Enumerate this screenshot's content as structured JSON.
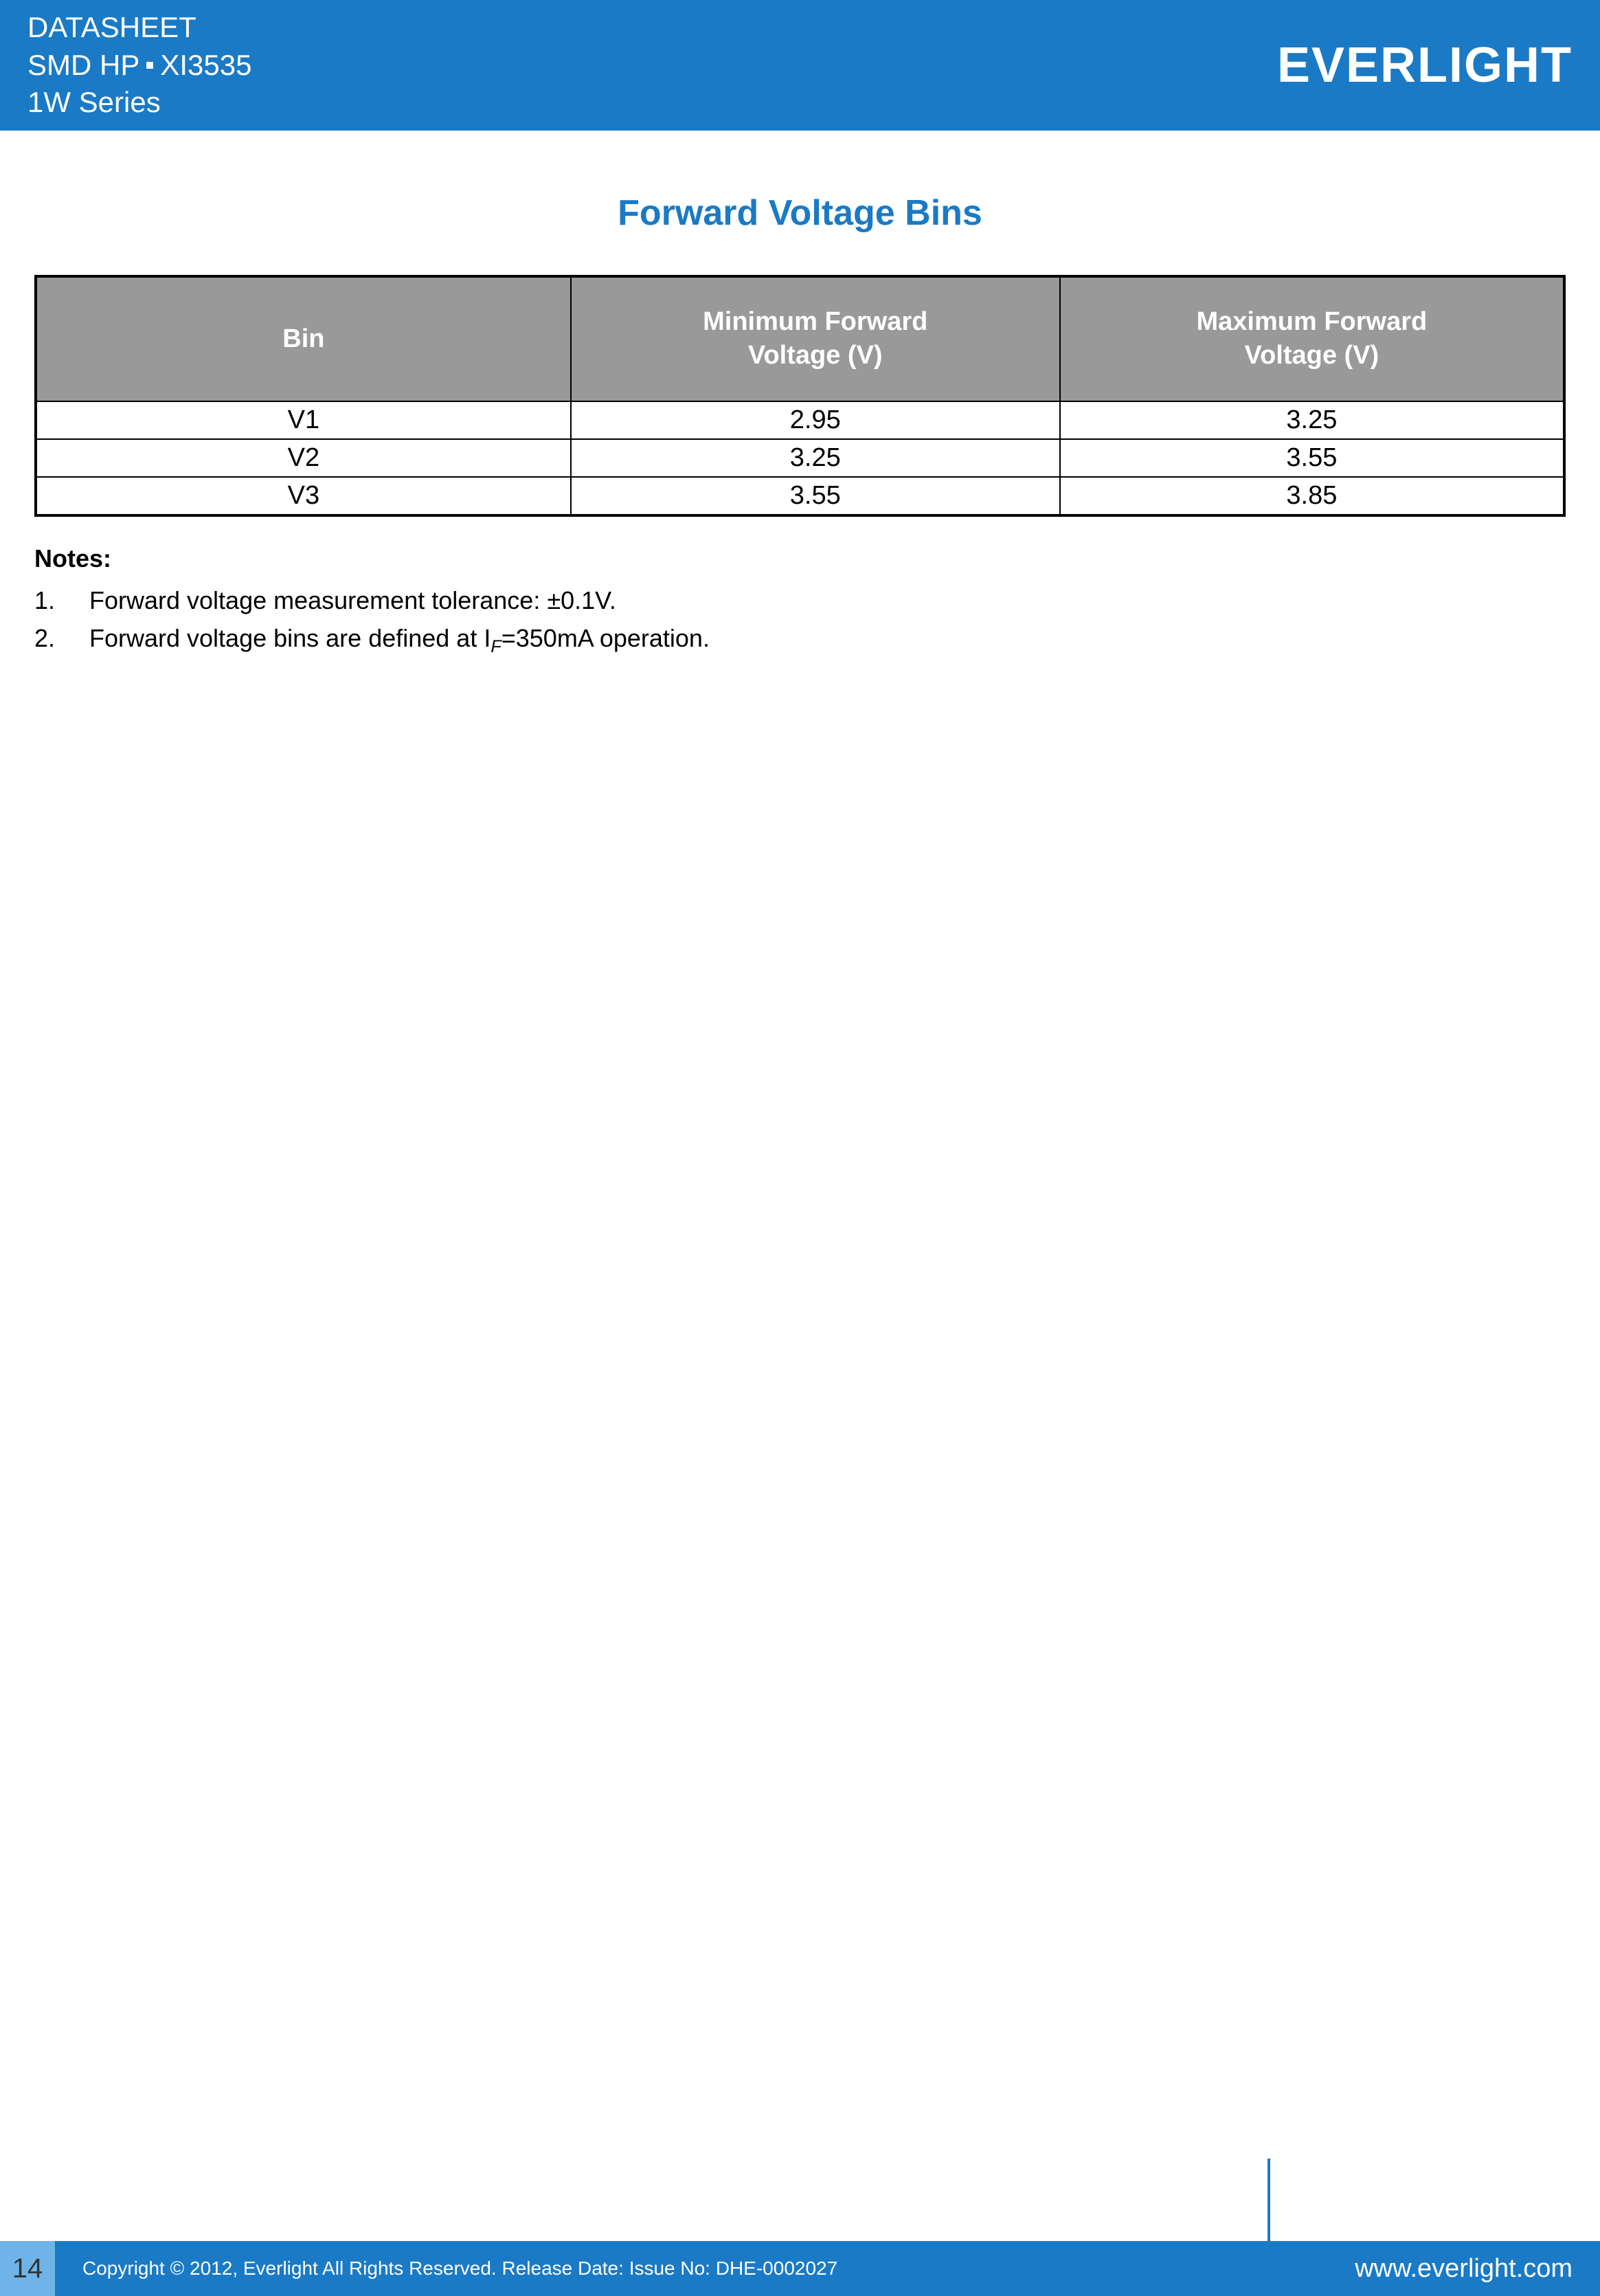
{
  "header": {
    "line1": "DATASHEET",
    "line2_part1": "SMD HP",
    "line2_part2": "XI3535",
    "line3": "1W Series",
    "logo": "EVERLIGHT"
  },
  "title": "Forward Voltage Bins",
  "table": {
    "type": "table",
    "header_bg": "#999999",
    "header_fg": "#ffffff",
    "border_color": "#000000",
    "cell_bg": "#ffffff",
    "cell_fg": "#000000",
    "columns": [
      {
        "label": "Bin",
        "width": "35%"
      },
      {
        "label_line1": "Minimum Forward",
        "label_line2": "Voltage (V)",
        "width": "32%"
      },
      {
        "label_line1": "Maximum Forward",
        "label_line2": "Voltage (V)",
        "width": "33%"
      }
    ],
    "rows": [
      {
        "bin": "V1",
        "min": "2.95",
        "max": "3.25"
      },
      {
        "bin": "V2",
        "min": "3.25",
        "max": "3.55"
      },
      {
        "bin": "V3",
        "min": "3.55",
        "max": "3.85"
      }
    ]
  },
  "notes": {
    "label": "Notes:",
    "items": [
      {
        "num": "1.",
        "text": "Forward voltage measurement tolerance: ±0.1V."
      },
      {
        "num": "2.",
        "text_before": "Forward voltage bins are defined at I",
        "subscript": "F",
        "text_after": "=350mA operation."
      }
    ]
  },
  "footer": {
    "page": "14",
    "copyright": "Copyright © 2012, Everlight All Rights Reserved. Release Date: Issue No: DHE-0002027",
    "url": "www.everlight.com"
  },
  "colors": {
    "primary_blue": "#1a7ac5",
    "light_blue": "#6eb4e8",
    "header_gray": "#999999",
    "white": "#ffffff",
    "black": "#000000"
  }
}
